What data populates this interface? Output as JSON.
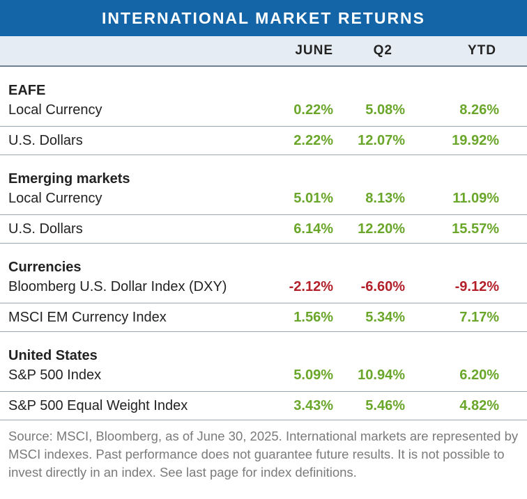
{
  "chart_data": {
    "type": "table",
    "title": "INTERNATIONAL MARKET RETURNS",
    "columns": [
      "JUNE",
      "Q2",
      "YTD"
    ],
    "sections": [
      {
        "heading": "EAFE",
        "rows": [
          {
            "label": "Local Currency",
            "values": [
              "0.22%",
              "5.08%",
              "8.26%"
            ],
            "signs": [
              "pos",
              "pos",
              "pos"
            ]
          },
          {
            "label": "U.S. Dollars",
            "values": [
              "2.22%",
              "12.07%",
              "19.92%"
            ],
            "signs": [
              "pos",
              "pos",
              "pos"
            ]
          }
        ]
      },
      {
        "heading": "Emerging markets",
        "rows": [
          {
            "label": "Local Currency",
            "values": [
              "5.01%",
              "8.13%",
              "11.09%"
            ],
            "signs": [
              "pos",
              "pos",
              "pos"
            ]
          },
          {
            "label": "U.S. Dollars",
            "values": [
              "6.14%",
              "12.20%",
              "15.57%"
            ],
            "signs": [
              "pos",
              "pos",
              "pos"
            ]
          }
        ]
      },
      {
        "heading": "Currencies",
        "rows": [
          {
            "label": "Bloomberg U.S. Dollar Index (DXY)",
            "values": [
              "-2.12%",
              "-6.60%",
              "-9.12%"
            ],
            "signs": [
              "neg",
              "neg",
              "neg"
            ]
          },
          {
            "label": "MSCI EM Currency Index",
            "values": [
              "1.56%",
              "5.34%",
              "7.17%"
            ],
            "signs": [
              "pos",
              "pos",
              "pos"
            ]
          }
        ]
      },
      {
        "heading": "United States",
        "rows": [
          {
            "label": "S&P 500 Index",
            "values": [
              "5.09%",
              "10.94%",
              "6.20%"
            ],
            "signs": [
              "pos",
              "pos",
              "pos"
            ]
          },
          {
            "label": "S&P 500 Equal Weight Index",
            "values": [
              "3.43%",
              "5.46%",
              "4.82%"
            ],
            "signs": [
              "pos",
              "pos",
              "pos"
            ]
          }
        ]
      }
    ],
    "source": "Source: MSCI, Bloomberg, as of June 30, 2025. International markets are represented by MSCI indexes. Past performance does not guarantee future results. It is not possible to invest directly in an index. See last page for index definitions."
  },
  "colors": {
    "header_bg": "#1464a8",
    "column_header_bg": "#e6ecf3",
    "positive": "#6aa62a",
    "negative": "#b3202a",
    "source_text": "#7a7a7a"
  }
}
